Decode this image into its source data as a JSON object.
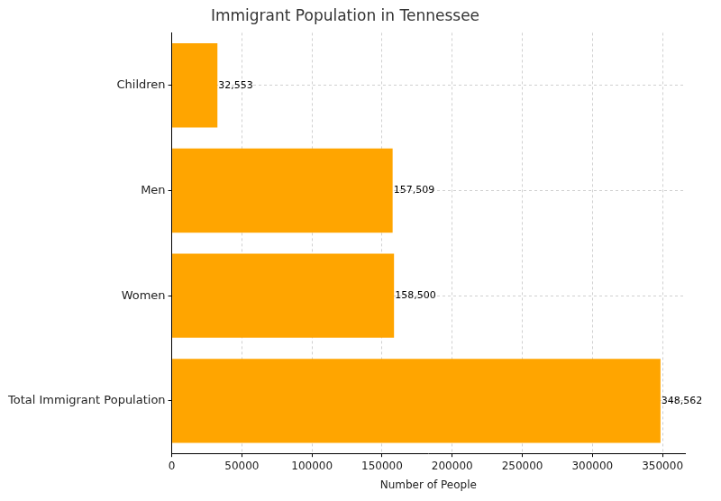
{
  "chart_data": {
    "type": "bar",
    "orientation": "horizontal",
    "title": "Immigrant Population in Tennessee",
    "x_label": "Number of People",
    "categories": [
      "Children",
      "Men",
      "Women",
      "Total Immigrant Population"
    ],
    "values": [
      32553,
      157509,
      158500,
      348562
    ],
    "value_labels": [
      "32,553",
      "157,509",
      "158,500",
      "348,562"
    ],
    "data_labels": true,
    "color": "#ffa500",
    "xlim": [
      0,
      366000
    ],
    "xticks": [
      0,
      50000,
      100000,
      150000,
      200000,
      250000,
      300000,
      350000
    ],
    "grid": true
  }
}
